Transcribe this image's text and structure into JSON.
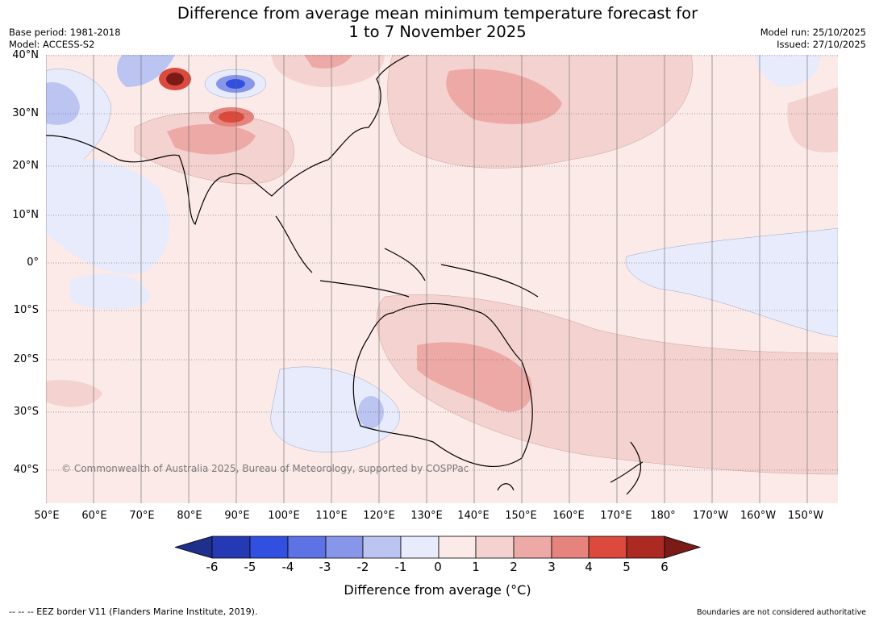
{
  "title": "Difference from average mean minimum temperature forecast for",
  "period": "1 to 7 November 2025",
  "base_period": "Base period: 1981-2018",
  "model": "Model: ACCESS-S2",
  "model_run": "Model run: 25/10/2025",
  "issued": "Issued: 27/10/2025",
  "copyright": "© Commonwealth of Australia 2025, Bureau of Meteorology, supported by COSPPac",
  "lat_labels": [
    "40°N",
    "30°N",
    "20°N",
    "10°N",
    "0°",
    "10°S",
    "20°S",
    "30°S",
    "40°S"
  ],
  "lon_labels": [
    "50°E",
    "60°E",
    "70°E",
    "80°E",
    "90°E",
    "100°E",
    "110°E",
    "120°E",
    "130°E",
    "140°E",
    "150°E",
    "160°E",
    "170°E",
    "180°",
    "170°W",
    "160°W",
    "150°W"
  ],
  "colorbar": {
    "label": "Difference from average (°C)",
    "ticks": [
      "-6",
      "-5",
      "-4",
      "-3",
      "-2",
      "-1",
      "0",
      "1",
      "2",
      "3",
      "4",
      "5",
      "6"
    ],
    "colors": [
      "#1e2f8c",
      "#2639b5",
      "#3150e0",
      "#5c72e5",
      "#8896ea",
      "#bcc4f2",
      "#e8ebfb",
      "#fbeae8",
      "#f4d2cf",
      "#eda9a5",
      "#e5837c",
      "#db4a3d",
      "#ac2a23",
      "#7a1b17"
    ]
  },
  "footer_left": "--  --  -- EEZ border V11 (Flanders Marine Institute, 2019).",
  "footer_right": "Boundaries are not considered authoritative"
}
